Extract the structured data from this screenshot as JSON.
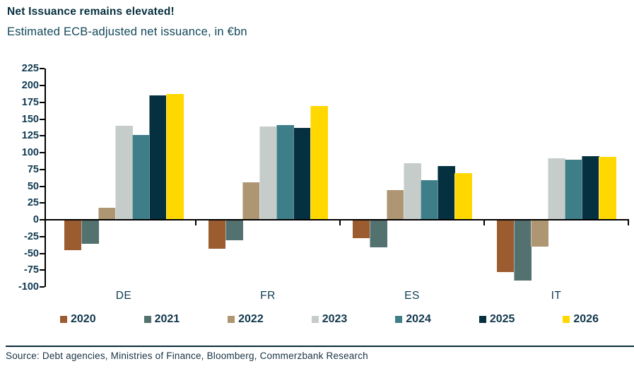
{
  "chart_data": {
    "type": "bar",
    "title": "Net Issuance remains elevated!",
    "subtitle": "Estimated ECB-adjusted net issuance, in €bn",
    "categories": [
      "DE",
      "FR",
      "ES",
      "IT"
    ],
    "series": [
      {
        "name": "2020",
        "color": "#9b5c30",
        "values": [
          -45,
          -43,
          -27,
          -78
        ]
      },
      {
        "name": "2021",
        "color": "#53716f",
        "values": [
          -36,
          -30,
          -41,
          -91
        ]
      },
      {
        "name": "2022",
        "color": "#ad9671",
        "values": [
          18,
          56,
          44,
          -40
        ]
      },
      {
        "name": "2023",
        "color": "#c6ccc9",
        "values": [
          140,
          139,
          84,
          92
        ]
      },
      {
        "name": "2024",
        "color": "#3d7e88",
        "values": [
          126,
          141,
          59,
          90
        ]
      },
      {
        "name": "2025",
        "color": "#05303f",
        "values": [
          185,
          137,
          80,
          95
        ]
      },
      {
        "name": "2026",
        "color": "#ffd800",
        "values": [
          187,
          170,
          69,
          94
        ]
      }
    ],
    "ylim": [
      -100,
      225
    ],
    "ytick_step": 25,
    "ylabel": "",
    "xlabel": "",
    "grid": false,
    "legend_position": "bottom"
  },
  "footer": {
    "source": "Source: Debt agencies, Ministries of Finance, Bloomberg, Commerzbank Research"
  },
  "colors": {
    "title_text": "#06303f",
    "axis_text": "#103a52",
    "axis_line": "#000000",
    "divider": "#0c2d3a"
  }
}
